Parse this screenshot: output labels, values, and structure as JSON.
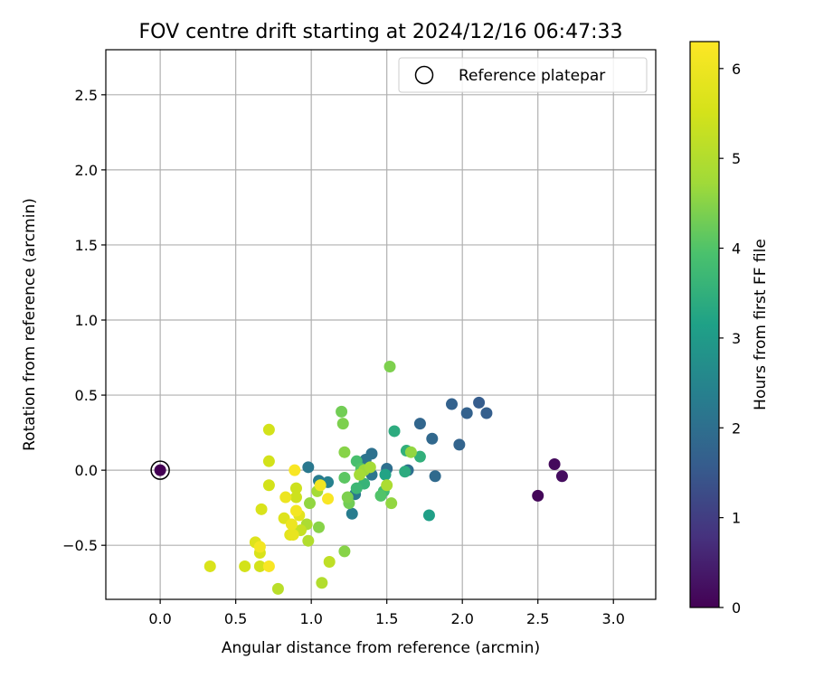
{
  "chart_data": {
    "type": "scatter",
    "title": "FOV centre drift starting at 2024/12/16 06:47:33",
    "xlabel": "Angular distance from reference (arcmin)",
    "ylabel": "Rotation from reference (arcmin)",
    "xlim": [
      -0.36,
      3.28
    ],
    "ylim": [
      -0.86,
      2.8
    ],
    "xticks": [
      0.0,
      0.5,
      1.0,
      1.5,
      2.0,
      2.5,
      3.0
    ],
    "xtick_labels": [
      "0.0",
      "0.5",
      "1.0",
      "1.5",
      "2.0",
      "2.5",
      "3.0"
    ],
    "yticks": [
      -0.5,
      0.0,
      0.5,
      1.0,
      1.5,
      2.0,
      2.5
    ],
    "ytick_labels": [
      "−0.5",
      "0.0",
      "0.5",
      "1.0",
      "1.5",
      "2.0",
      "2.5"
    ],
    "grid": true,
    "legend": {
      "position": "top-right",
      "entries": [
        "Reference platepar"
      ]
    },
    "reference_point": {
      "x": 0.0,
      "y": 0.0
    },
    "colorbar": {
      "label": "Hours from first FF file",
      "range": [
        0,
        6.3
      ],
      "ticks": [
        0,
        1,
        2,
        3,
        4,
        5,
        6
      ],
      "tick_labels": [
        "0",
        "1",
        "2",
        "3",
        "4",
        "5",
        "6"
      ],
      "colormap": "viridis"
    },
    "points": [
      {
        "x": 0.0,
        "y": 0.0,
        "c": 0.0
      },
      {
        "x": 2.5,
        "y": -0.17,
        "c": 0.1
      },
      {
        "x": 2.61,
        "y": 0.04,
        "c": 0.15
      },
      {
        "x": 2.66,
        "y": -0.04,
        "c": 0.2
      },
      {
        "x": 2.11,
        "y": 0.45,
        "c": 1.6
      },
      {
        "x": 2.16,
        "y": 0.38,
        "c": 1.65
      },
      {
        "x": 1.93,
        "y": 0.44,
        "c": 1.7
      },
      {
        "x": 2.03,
        "y": 0.38,
        "c": 1.7
      },
      {
        "x": 1.98,
        "y": 0.17,
        "c": 1.75
      },
      {
        "x": 1.72,
        "y": 0.31,
        "c": 1.8
      },
      {
        "x": 1.8,
        "y": 0.21,
        "c": 1.85
      },
      {
        "x": 1.82,
        "y": -0.04,
        "c": 1.9
      },
      {
        "x": 1.64,
        "y": 0.0,
        "c": 2.0
      },
      {
        "x": 1.5,
        "y": 0.01,
        "c": 2.0
      },
      {
        "x": 1.4,
        "y": 0.11,
        "c": 2.05
      },
      {
        "x": 1.36,
        "y": 0.07,
        "c": 2.1
      },
      {
        "x": 1.4,
        "y": -0.03,
        "c": 2.15
      },
      {
        "x": 1.29,
        "y": -0.16,
        "c": 2.2
      },
      {
        "x": 1.27,
        "y": -0.29,
        "c": 2.3
      },
      {
        "x": 0.98,
        "y": 0.02,
        "c": 2.2
      },
      {
        "x": 1.05,
        "y": -0.07,
        "c": 2.3
      },
      {
        "x": 1.11,
        "y": -0.08,
        "c": 2.4
      },
      {
        "x": 1.78,
        "y": -0.3,
        "c": 3.1
      },
      {
        "x": 1.55,
        "y": 0.26,
        "c": 3.4
      },
      {
        "x": 1.72,
        "y": 0.09,
        "c": 3.5
      },
      {
        "x": 1.63,
        "y": 0.13,
        "c": 3.5
      },
      {
        "x": 1.62,
        "y": -0.01,
        "c": 3.4
      },
      {
        "x": 1.49,
        "y": -0.03,
        "c": 3.2
      },
      {
        "x": 1.35,
        "y": -0.09,
        "c": 3.6
      },
      {
        "x": 1.3,
        "y": -0.12,
        "c": 3.7
      },
      {
        "x": 1.48,
        "y": -0.14,
        "c": 3.8
      },
      {
        "x": 1.46,
        "y": -0.17,
        "c": 4.0
      },
      {
        "x": 1.3,
        "y": 0.06,
        "c": 3.9
      },
      {
        "x": 1.33,
        "y": 0.01,
        "c": 4.0
      },
      {
        "x": 1.22,
        "y": -0.05,
        "c": 4.1
      },
      {
        "x": 1.25,
        "y": -0.22,
        "c": 4.3
      },
      {
        "x": 1.24,
        "y": -0.18,
        "c": 4.4
      },
      {
        "x": 1.2,
        "y": 0.39,
        "c": 4.3
      },
      {
        "x": 1.21,
        "y": 0.31,
        "c": 4.4
      },
      {
        "x": 1.22,
        "y": 0.12,
        "c": 4.5
      },
      {
        "x": 1.52,
        "y": 0.69,
        "c": 4.4
      },
      {
        "x": 1.66,
        "y": 0.12,
        "c": 4.6
      },
      {
        "x": 1.53,
        "y": -0.22,
        "c": 4.6
      },
      {
        "x": 1.35,
        "y": 0.0,
        "c": 4.7
      },
      {
        "x": 1.39,
        "y": 0.02,
        "c": 4.8
      },
      {
        "x": 1.32,
        "y": -0.03,
        "c": 4.8
      },
      {
        "x": 1.5,
        "y": -0.1,
        "c": 4.9
      },
      {
        "x": 1.22,
        "y": -0.54,
        "c": 4.5
      },
      {
        "x": 1.05,
        "y": -0.38,
        "c": 4.5
      },
      {
        "x": 0.99,
        "y": -0.22,
        "c": 4.6
      },
      {
        "x": 1.04,
        "y": -0.14,
        "c": 4.8
      },
      {
        "x": 0.97,
        "y": -0.36,
        "c": 4.9
      },
      {
        "x": 0.98,
        "y": -0.47,
        "c": 5.0
      },
      {
        "x": 1.07,
        "y": -0.75,
        "c": 5.0
      },
      {
        "x": 0.78,
        "y": -0.79,
        "c": 5.1
      },
      {
        "x": 1.12,
        "y": -0.61,
        "c": 5.2
      },
      {
        "x": 0.93,
        "y": -0.4,
        "c": 5.3
      },
      {
        "x": 0.9,
        "y": -0.12,
        "c": 5.4
      },
      {
        "x": 0.9,
        "y": -0.18,
        "c": 5.4
      },
      {
        "x": 0.72,
        "y": 0.27,
        "c": 5.5
      },
      {
        "x": 0.72,
        "y": 0.06,
        "c": 5.5
      },
      {
        "x": 0.72,
        "y": -0.1,
        "c": 5.5
      },
      {
        "x": 0.67,
        "y": -0.26,
        "c": 5.6
      },
      {
        "x": 0.82,
        "y": -0.32,
        "c": 5.7
      },
      {
        "x": 0.86,
        "y": -0.43,
        "c": 5.8
      },
      {
        "x": 0.92,
        "y": -0.3,
        "c": 5.8
      },
      {
        "x": 0.56,
        "y": -0.64,
        "c": 5.5
      },
      {
        "x": 0.66,
        "y": -0.64,
        "c": 5.5
      },
      {
        "x": 0.66,
        "y": -0.55,
        "c": 5.6
      },
      {
        "x": 0.63,
        "y": -0.48,
        "c": 5.7
      },
      {
        "x": 0.33,
        "y": -0.64,
        "c": 5.6
      },
      {
        "x": 0.88,
        "y": -0.43,
        "c": 5.9
      },
      {
        "x": 0.87,
        "y": -0.36,
        "c": 6.0
      },
      {
        "x": 0.83,
        "y": -0.18,
        "c": 6.0
      },
      {
        "x": 0.9,
        "y": -0.27,
        "c": 6.1
      },
      {
        "x": 1.06,
        "y": -0.1,
        "c": 6.1
      },
      {
        "x": 1.11,
        "y": -0.19,
        "c": 6.2
      },
      {
        "x": 0.89,
        "y": 0.0,
        "c": 6.2
      },
      {
        "x": 0.72,
        "y": -0.64,
        "c": 6.2
      },
      {
        "x": 0.66,
        "y": -0.51,
        "c": 6.1
      }
    ]
  }
}
